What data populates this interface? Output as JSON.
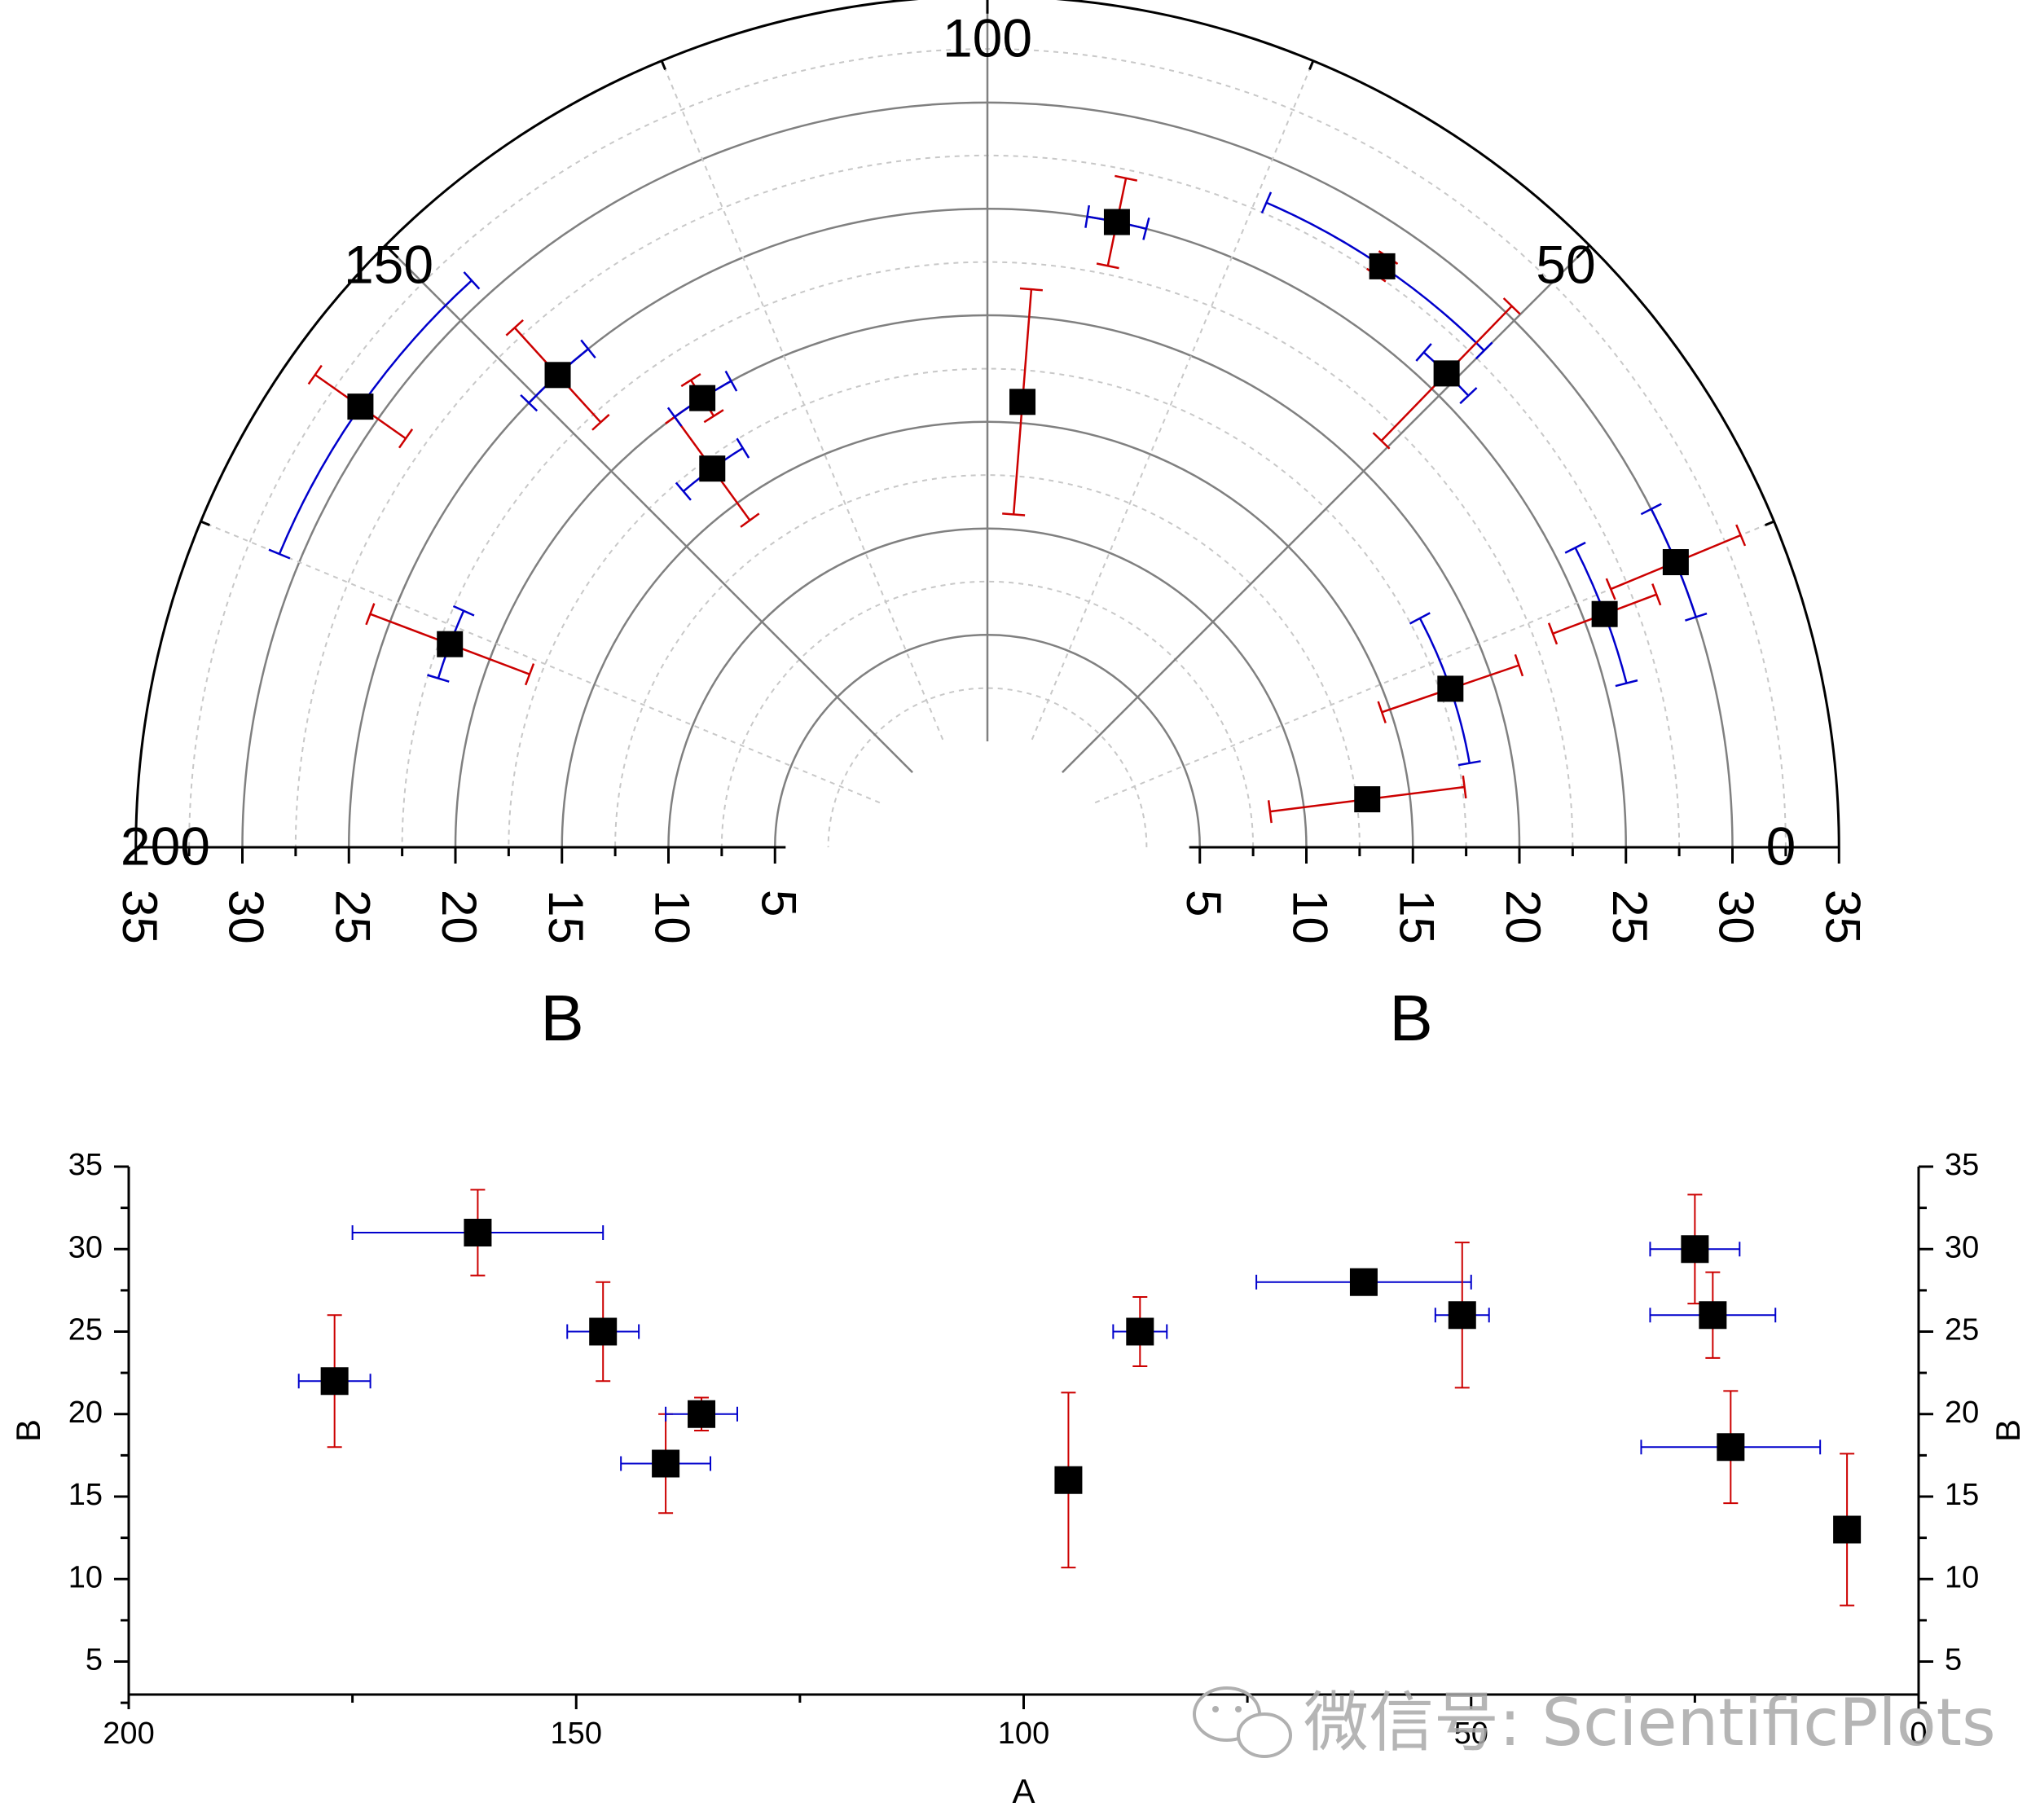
{
  "chart_data": [
    {
      "type": "polar-scatter",
      "angular_axis": {
        "label": "",
        "range": [
          0,
          200
        ],
        "ticks": [
          "0",
          "50",
          "100",
          "150",
          "200"
        ]
      },
      "radial_axis": {
        "label": "B",
        "range": [
          0,
          35
        ],
        "ticks": [
          "5",
          "10",
          "15",
          "20",
          "25",
          "30",
          "35"
        ]
      },
      "grid": true,
      "marker": "filled-square",
      "colors": {
        "marker": "#000000",
        "a_error": "#0000cc",
        "b_error": "#cc0000"
      },
      "points": [
        {
          "a": 177,
          "b": 22,
          "a_err": 4,
          "b_err": 4
        },
        {
          "a": 161,
          "b": 31,
          "a_err": 14,
          "b_err": 2.6
        },
        {
          "a": 147,
          "b": 25,
          "a_err": 4,
          "b_err": 3
        },
        {
          "a": 140,
          "b": 17,
          "a_err": 5,
          "b_err": 3
        },
        {
          "a": 136,
          "b": 20,
          "a_err": 4,
          "b_err": 1
        },
        {
          "a": 95,
          "b": 16,
          "a_err": 1,
          "b_err": 5.3
        },
        {
          "a": 87,
          "b": 25,
          "a_err": 3,
          "b_err": 2.1
        },
        {
          "a": 62,
          "b": 28,
          "a_err": 12,
          "b_err": 0.5
        },
        {
          "a": 51,
          "b": 26,
          "a_err": 3,
          "b_err": 4.4
        },
        {
          "a": 25,
          "b": 30,
          "a_err": 5,
          "b_err": 3.3
        },
        {
          "a": 23,
          "b": 26,
          "a_err": 7,
          "b_err": 2.6
        },
        {
          "a": 21,
          "b": 18,
          "a_err": 10,
          "b_err": 3.4
        },
        {
          "a": 8,
          "b": 13,
          "a_err": 1,
          "b_err": 4.6
        }
      ]
    },
    {
      "type": "scatter",
      "xlabel": "A",
      "ylabel": "B",
      "ylabel_right": "B",
      "xlim": [
        200,
        0
      ],
      "ylim": [
        3,
        35
      ],
      "xticks": [
        "200",
        "150",
        "100",
        "50",
        "0"
      ],
      "yticks": [
        "5",
        "10",
        "15",
        "20",
        "25",
        "30",
        "35"
      ],
      "grid": false,
      "marker": "filled-square",
      "colors": {
        "marker": "#000000",
        "x_error": "#0000cc",
        "y_error": "#cc0000"
      },
      "points": "same as polar chart points (a = x, b = y)"
    }
  ],
  "watermark": {
    "text": "微信号: ScientificPlots",
    "icon": "wechat-icon"
  }
}
